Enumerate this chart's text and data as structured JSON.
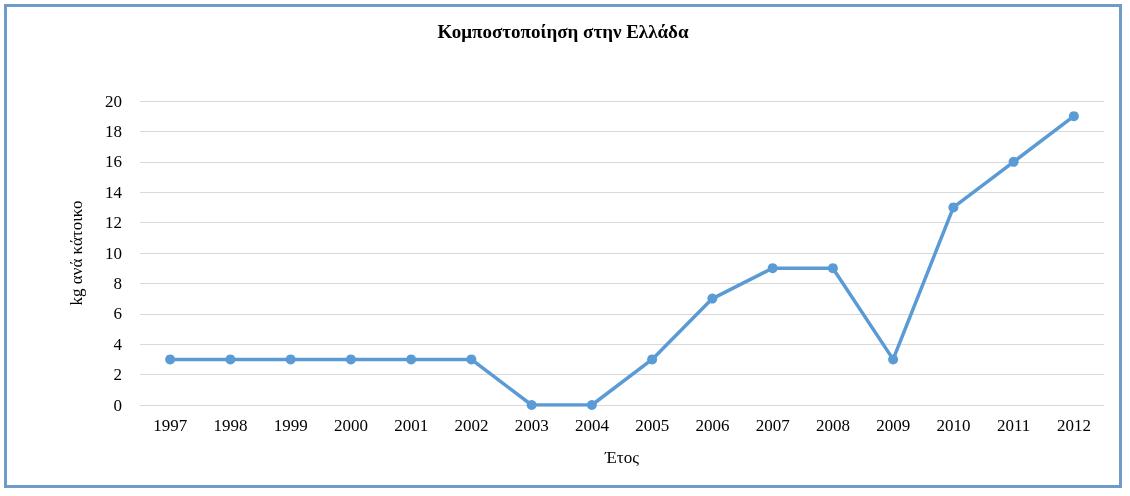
{
  "chart_data": {
    "type": "line",
    "title": "Κομποστοποίηση στην Ελλάδα",
    "xlabel": "Έτος",
    "ylabel": "kg ανά κάτοικο",
    "categories": [
      "1997",
      "1998",
      "1999",
      "2000",
      "2001",
      "2002",
      "2003",
      "2004",
      "2005",
      "2006",
      "2007",
      "2008",
      "2009",
      "2010",
      "2011",
      "2012"
    ],
    "series": [
      {
        "color": "#5b9bd5",
        "values": [
          3,
          3,
          3,
          3,
          3,
          3,
          0,
          0,
          3,
          7,
          9,
          9,
          3,
          13,
          16,
          19
        ]
      }
    ],
    "ylim": [
      0,
      20
    ],
    "yticks": [
      0,
      2,
      4,
      6,
      8,
      10,
      12,
      14,
      16,
      18,
      20
    ],
    "grid": "y",
    "marker": "circle",
    "line_style": "solid"
  }
}
